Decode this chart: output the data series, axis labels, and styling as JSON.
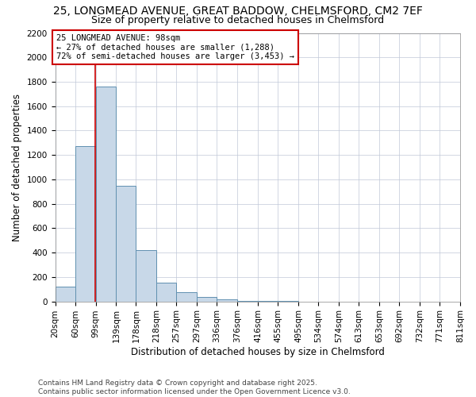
{
  "title_line1": "25, LONGMEAD AVENUE, GREAT BADDOW, CHELMSFORD, CM2 7EF",
  "title_line2": "Size of property relative to detached houses in Chelmsford",
  "xlabel": "Distribution of detached houses by size in Chelmsford",
  "ylabel": "Number of detached properties",
  "footnote1": "Contains HM Land Registry data © Crown copyright and database right 2025.",
  "footnote2": "Contains public sector information licensed under the Open Government Licence v3.0.",
  "annotation_title": "25 LONGMEAD AVENUE: 98sqm",
  "annotation_line2": "← 27% of detached houses are smaller (1,288)",
  "annotation_line3": "72% of semi-detached houses are larger (3,453) →",
  "bar_edges": [
    20,
    60,
    99,
    139,
    178,
    218,
    257,
    297,
    336,
    376,
    416,
    455,
    495,
    534,
    574,
    613,
    653,
    692,
    732,
    771,
    811
  ],
  "bar_heights": [
    120,
    1270,
    1760,
    950,
    420,
    155,
    75,
    35,
    20,
    5,
    2,
    1,
    0,
    0,
    0,
    0,
    0,
    0,
    0,
    0
  ],
  "bar_color": "#c8d8e8",
  "bar_edgecolor": "#6090b0",
  "vline_color": "#cc0000",
  "vline_x": 98,
  "annotation_box_edgecolor": "#cc0000",
  "annotation_text_color": "#000000",
  "background_color": "#ffffff",
  "grid_color": "#c0c8d8",
  "ylim": [
    0,
    2200
  ],
  "yticks": [
    0,
    200,
    400,
    600,
    800,
    1000,
    1200,
    1400,
    1600,
    1800,
    2000,
    2200
  ],
  "title_fontsize": 10,
  "subtitle_fontsize": 9,
  "axis_label_fontsize": 8.5,
  "tick_fontsize": 7.5,
  "annotation_fontsize": 7.5,
  "footnote_fontsize": 6.5
}
